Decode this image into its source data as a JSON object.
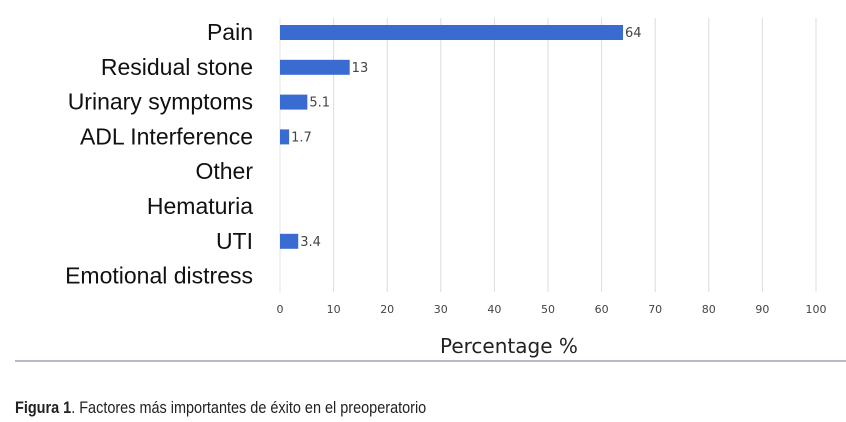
{
  "chart_data": {
    "type": "bar",
    "orientation": "horizontal",
    "categories": [
      "Pain",
      "Residual stone",
      "Urinary symptoms",
      "ADL Interference",
      "Other",
      "Hematuria",
      "UTI",
      "Emotional distress"
    ],
    "values": [
      64,
      13,
      5.1,
      1.7,
      0,
      0,
      3.4,
      0
    ],
    "data_labels": [
      "64",
      "13",
      "5.1",
      "1.7",
      "",
      "",
      "3.4",
      ""
    ],
    "xlabel": "Percentage %",
    "xlim": [
      0,
      100
    ],
    "xticks": [
      0,
      10,
      20,
      30,
      40,
      50,
      60,
      70,
      80,
      90,
      100
    ],
    "grid": true,
    "bar_color": "#3a6bd1"
  },
  "caption": {
    "label": "Figura 1",
    "text": ". Factores más importantes de éxito en el preoperatorio"
  }
}
